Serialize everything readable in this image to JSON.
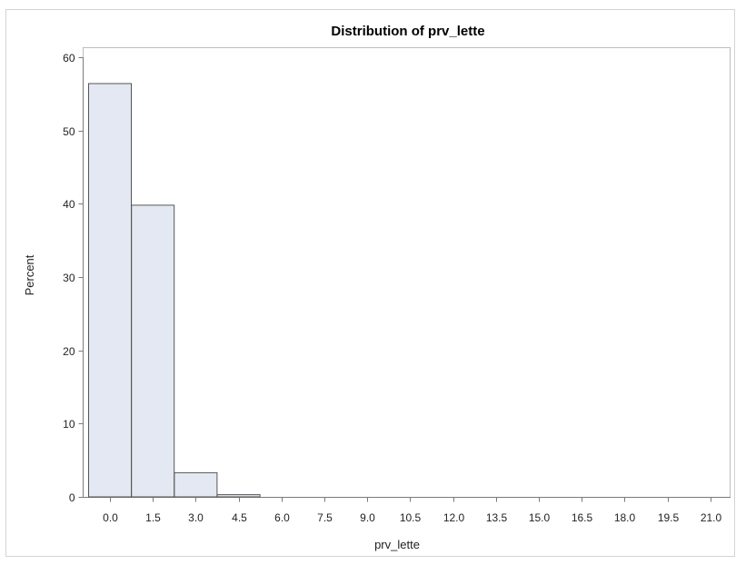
{
  "chart_data": {
    "type": "bar",
    "title": "Distribution of prv_lette",
    "xlabel": "prv_lette",
    "ylabel": "Percent",
    "ylim": [
      0,
      60
    ],
    "yticks": [
      0,
      10,
      20,
      30,
      40,
      50,
      60
    ],
    "categories": [
      "0.0",
      "1.5",
      "3.0",
      "4.5",
      "6.0",
      "7.5",
      "9.0",
      "10.5",
      "12.0",
      "13.5",
      "15.0",
      "16.5",
      "18.0",
      "19.5",
      "21.0"
    ],
    "values": [
      56.4,
      39.8,
      3.3,
      0.3,
      0,
      0,
      0,
      0,
      0,
      0,
      0,
      0,
      0,
      0,
      0
    ],
    "bar_color": "#e4e8f2",
    "bar_stroke": "#555555",
    "grid": false
  }
}
